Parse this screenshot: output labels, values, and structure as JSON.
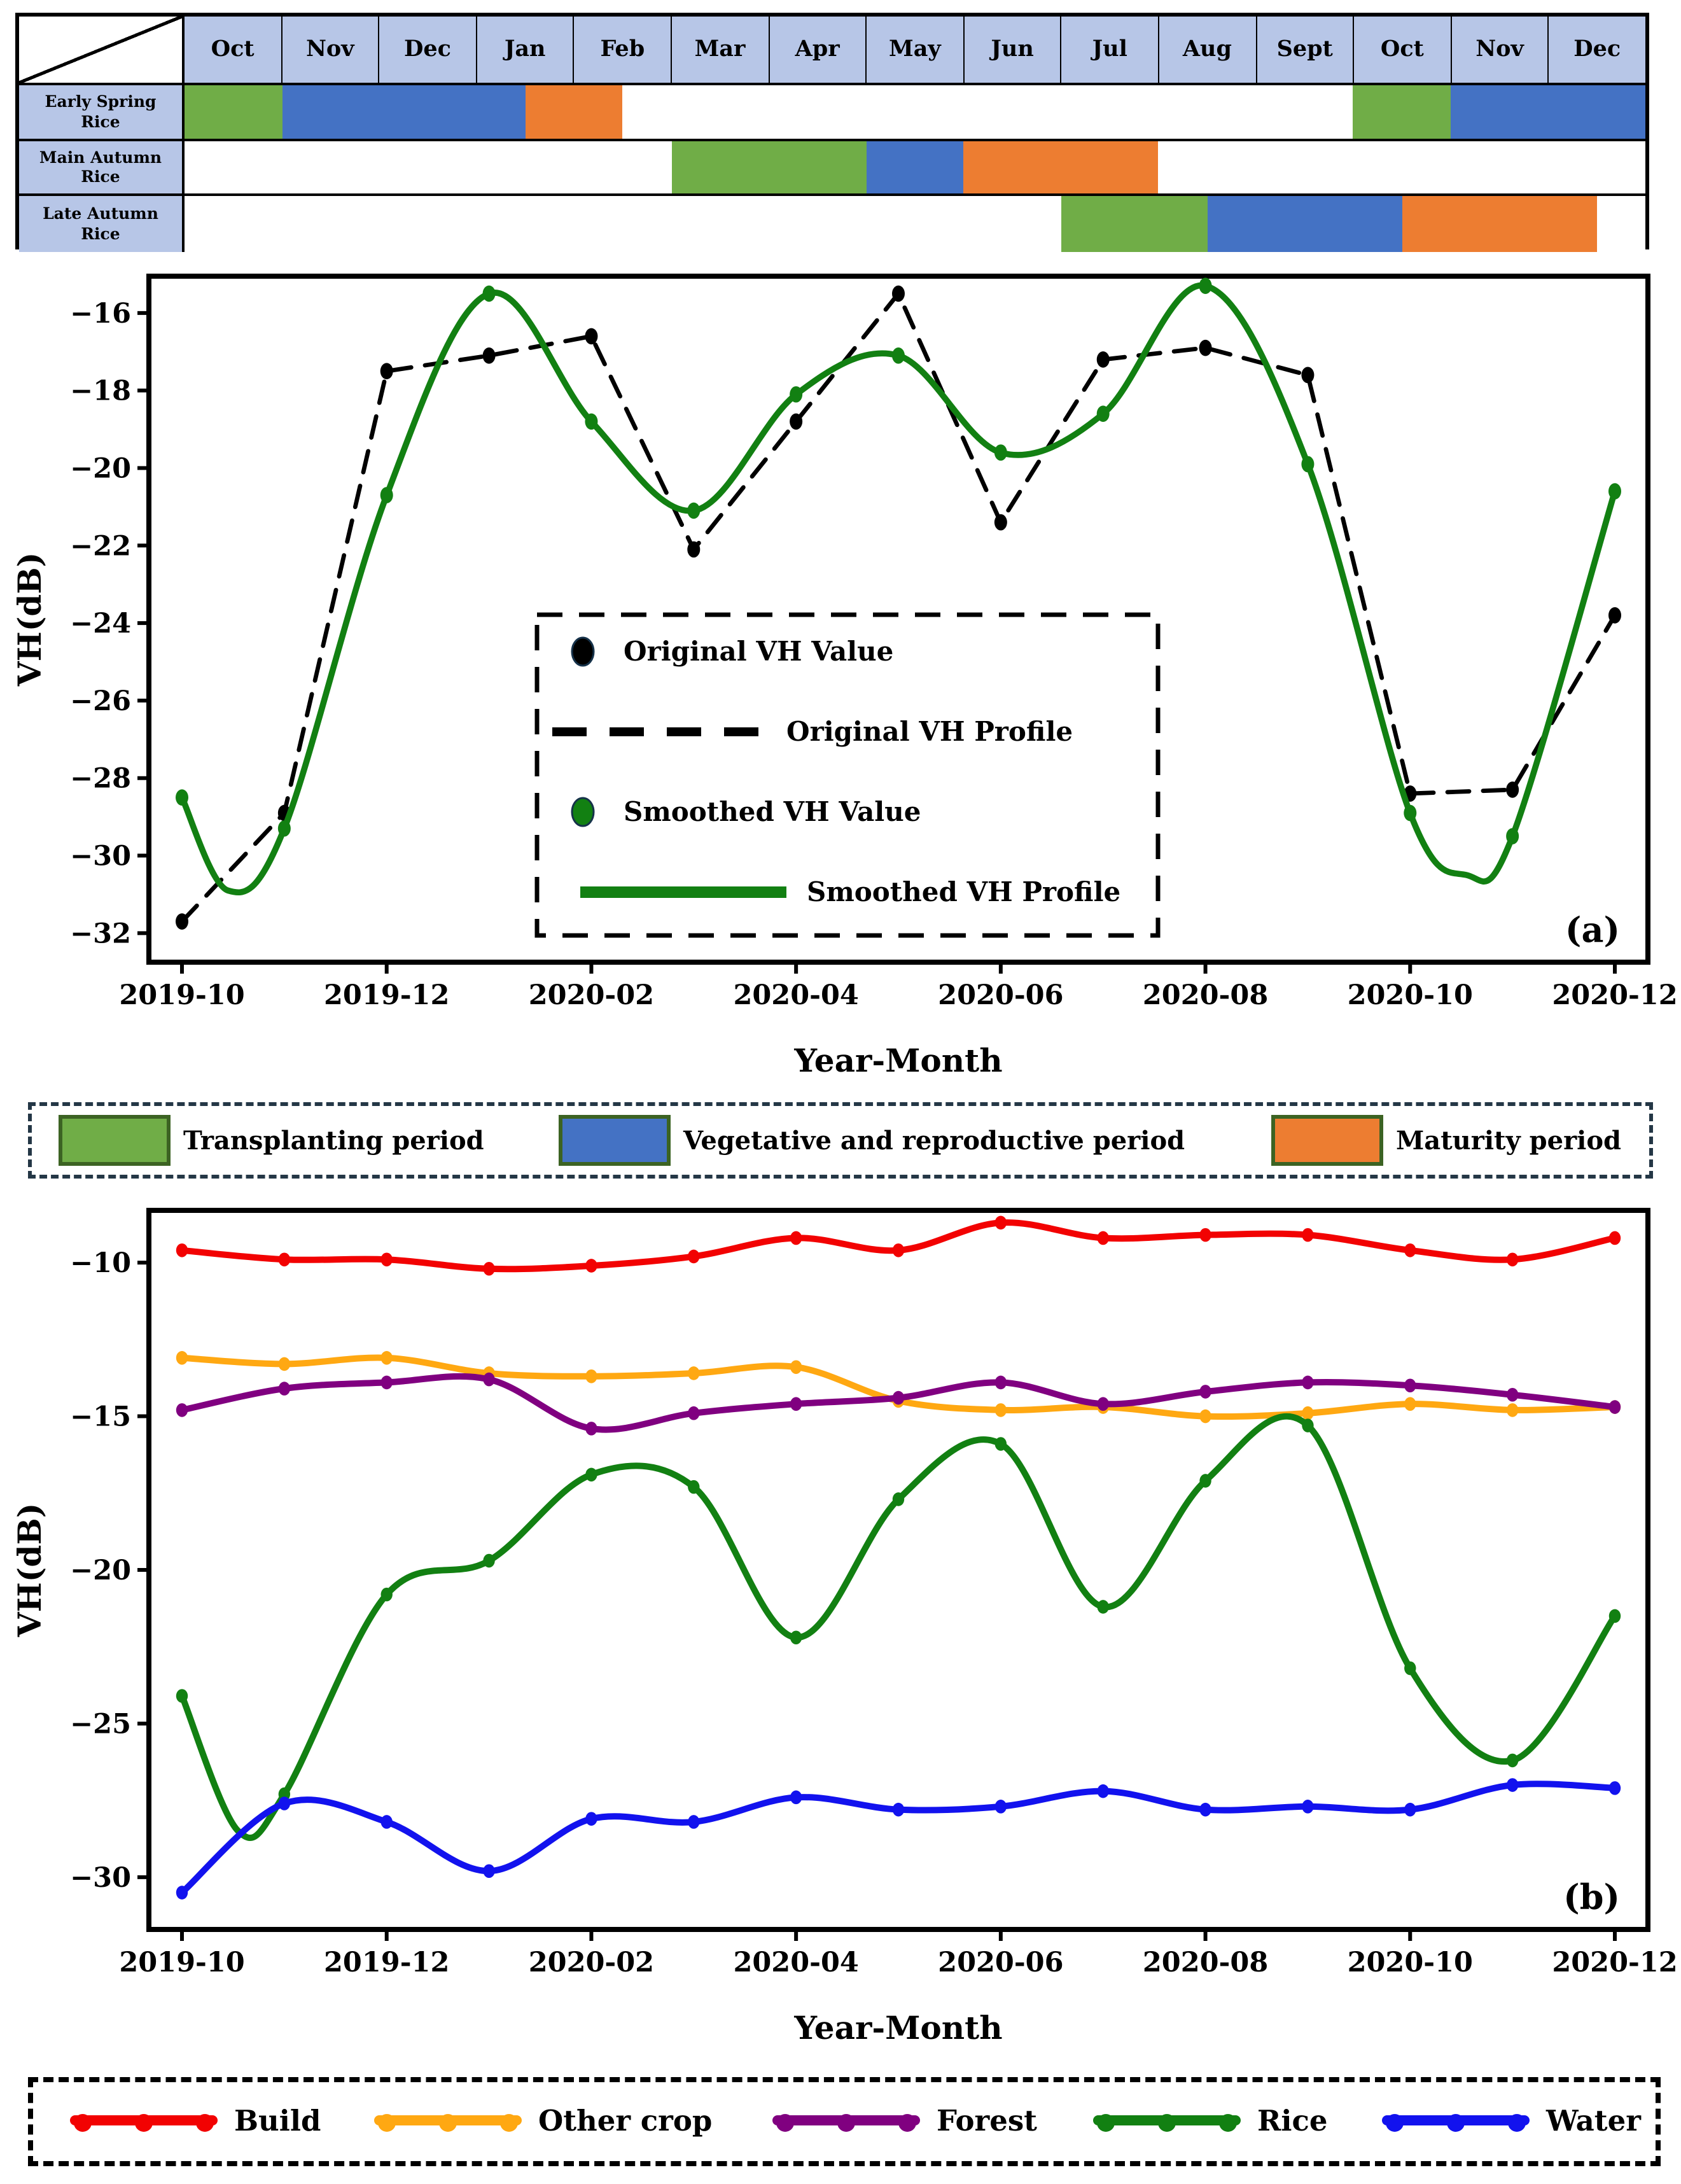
{
  "cropping_calendar": {
    "months": [
      "Oct",
      "Nov",
      "Dec",
      "Jan",
      "Feb",
      "Mar",
      "Apr",
      "May",
      "Jun",
      "Jul",
      "Aug",
      "Sept",
      "Oct",
      "Nov",
      "Dec"
    ],
    "total_months": 15,
    "rows": [
      {
        "label": "Early Spring Rice",
        "segments": [
          {
            "period": "transplanting",
            "start": 0,
            "end": 1
          },
          {
            "period": "vegetative",
            "start": 1,
            "end": 3.5
          },
          {
            "period": "maturity",
            "start": 3.5,
            "end": 4.5
          },
          {
            "period": "transplanting",
            "start": 12,
            "end": 13
          },
          {
            "period": "vegetative",
            "start": 13,
            "end": 15
          }
        ]
      },
      {
        "label": "Main Autumn Rice",
        "segments": [
          {
            "period": "transplanting",
            "start": 5,
            "end": 7
          },
          {
            "period": "vegetative",
            "start": 7,
            "end": 8
          },
          {
            "period": "maturity",
            "start": 8,
            "end": 10
          }
        ]
      },
      {
        "label": "Late Autumn Rice",
        "segments": [
          {
            "period": "transplanting",
            "start": 9,
            "end": 10.5
          },
          {
            "period": "vegetative",
            "start": 10.5,
            "end": 12.5
          },
          {
            "period": "maturity",
            "start": 12.5,
            "end": 14.5
          }
        ]
      }
    ]
  },
  "period_colors": {
    "transplanting": "#70AD47",
    "vegetative": "#4472C4",
    "maturity": "#ED7D31"
  },
  "period_legend": {
    "items": [
      {
        "label": "Transplanting period",
        "period": "transplanting"
      },
      {
        "label": "Vegetative and reproductive period",
        "period": "vegetative"
      },
      {
        "label": "Maturity period",
        "period": "maturity"
      }
    ]
  },
  "chart_data": [
    {
      "id": "a",
      "type": "line",
      "panel_label": "(a)",
      "xlabel": "Year-Month",
      "ylabel": "VH(dB)",
      "x": [
        "2019-10",
        "2019-11",
        "2019-12",
        "2020-01",
        "2020-02",
        "2020-03",
        "2020-04",
        "2020-05",
        "2020-06",
        "2020-07",
        "2020-08",
        "2020-09",
        "2020-10",
        "2020-11",
        "2020-12"
      ],
      "x_tick_every": 2,
      "ylim": [
        -32.75,
        -15.05
      ],
      "yticks": [
        -16,
        -18,
        -20,
        -22,
        -24,
        -26,
        -28,
        -30,
        -32
      ],
      "grid": false,
      "legend_position": "inside lower-center",
      "series": [
        {
          "name": "Original VH Profile",
          "color": "#000000",
          "line": "dashed",
          "smooth": false,
          "marker": true,
          "values": [
            -31.7,
            -28.9,
            -17.5,
            -17.1,
            -16.6,
            -22.1,
            -18.8,
            -15.5,
            -21.4,
            -17.2,
            -16.9,
            -17.6,
            -28.4,
            -28.3,
            -23.8
          ]
        },
        {
          "name": "Smoothed VH Profile",
          "color": "#128012",
          "line": "solid",
          "smooth": true,
          "marker": true,
          "values": [
            -28.5,
            -29.3,
            -20.7,
            -15.5,
            -18.8,
            -21.1,
            -18.1,
            -17.1,
            -19.6,
            -18.6,
            -15.3,
            -19.9,
            -28.9,
            -29.5,
            -20.6
          ],
          "curve_dips": [
            {
              "x": 0.45,
              "y": -30.9
            },
            {
              "x": 12.55,
              "y": -30.5
            }
          ]
        }
      ],
      "legend": [
        {
          "label": "Original VH Value",
          "swatch": "marker",
          "color": "#000000"
        },
        {
          "label": "Original VH Profile",
          "swatch": "dashed-line",
          "color": "#000000"
        },
        {
          "label": "Smoothed VH Value",
          "swatch": "marker",
          "color": "#128012"
        },
        {
          "label": "Smoothed VH Profile",
          "swatch": "solid-line",
          "color": "#128012"
        }
      ]
    },
    {
      "id": "b",
      "type": "line",
      "panel_label": "(b)",
      "xlabel": "Year-Month",
      "ylabel": "VH(dB)",
      "x": [
        "2019-10",
        "2019-11",
        "2019-12",
        "2020-01",
        "2020-02",
        "2020-03",
        "2020-04",
        "2020-05",
        "2020-06",
        "2020-07",
        "2020-08",
        "2020-09",
        "2020-10",
        "2020-11",
        "2020-12"
      ],
      "x_tick_every": 2,
      "ylim": [
        -31.7,
        -8.3
      ],
      "yticks": [
        -10,
        -15,
        -20,
        -25,
        -30
      ],
      "grid": false,
      "legend_position": "outside bottom",
      "series": [
        {
          "name": "Build",
          "color": "#F20202",
          "line": "solid",
          "smooth": true,
          "marker": true,
          "values": [
            -9.6,
            -9.9,
            -9.9,
            -10.2,
            -10.1,
            -9.8,
            -9.2,
            -9.6,
            -8.7,
            -9.2,
            -9.1,
            -9.1,
            -9.6,
            -9.9,
            -9.2
          ]
        },
        {
          "name": "Other crop",
          "color": "#FFA812",
          "line": "solid",
          "smooth": true,
          "marker": true,
          "values": [
            -13.1,
            -13.3,
            -13.1,
            -13.6,
            -13.7,
            -13.6,
            -13.4,
            -14.5,
            -14.8,
            -14.7,
            -15.0,
            -14.9,
            -14.6,
            -14.8,
            -14.7
          ]
        },
        {
          "name": "Forest",
          "color": "#800080",
          "line": "solid",
          "smooth": true,
          "marker": true,
          "values": [
            -14.8,
            -14.1,
            -13.9,
            -13.8,
            -15.4,
            -14.9,
            -14.6,
            -14.4,
            -13.9,
            -14.6,
            -14.2,
            -13.9,
            -14.0,
            -14.3,
            -14.7
          ]
        },
        {
          "name": "Rice",
          "color": "#128012",
          "line": "solid",
          "smooth": true,
          "marker": true,
          "values": [
            -24.1,
            -27.3,
            -20.8,
            -19.7,
            -16.9,
            -17.3,
            -22.2,
            -17.7,
            -15.9,
            -21.2,
            -17.1,
            -15.3,
            -23.2,
            -26.2,
            -21.5
          ],
          "curve_dips": [
            {
              "x": 0.55,
              "y": -28.5
            }
          ]
        },
        {
          "name": "Water",
          "color": "#1212EE",
          "line": "solid",
          "smooth": true,
          "marker": true,
          "values": [
            -30.5,
            -27.6,
            -28.2,
            -29.8,
            -28.1,
            -28.2,
            -27.4,
            -27.8,
            -27.7,
            -27.2,
            -27.8,
            -27.7,
            -27.8,
            -27.0,
            -27.1
          ]
        }
      ],
      "legend": [
        {
          "label": "Build",
          "color": "#F20202"
        },
        {
          "label": "Other crop",
          "color": "#FFA812"
        },
        {
          "label": "Forest",
          "color": "#800080"
        },
        {
          "label": "Rice",
          "color": "#128012"
        },
        {
          "label": "Water",
          "color": "#1212EE"
        }
      ]
    }
  ]
}
